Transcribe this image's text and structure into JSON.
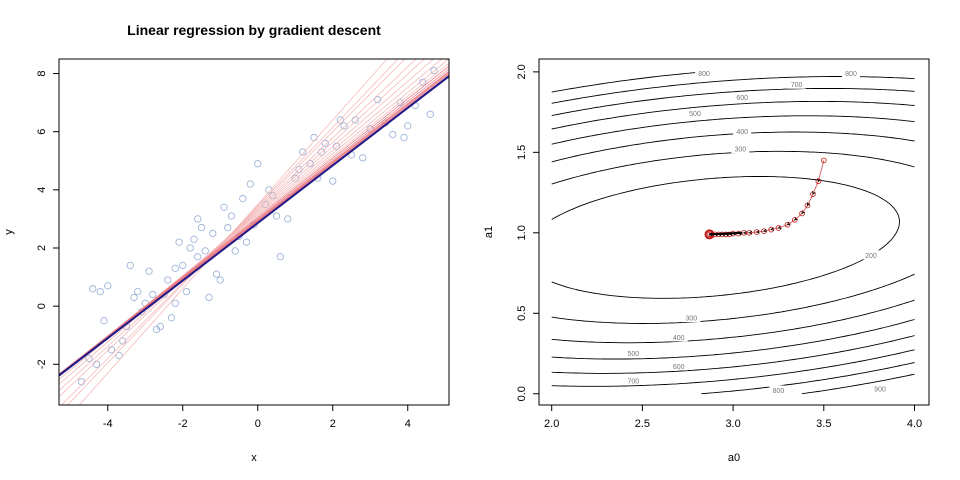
{
  "chart_data": [
    {
      "type": "scatter",
      "title": "Linear regression by gradient descent",
      "xlabel": "x",
      "ylabel": "y",
      "xlim": [
        -5.3,
        5.1
      ],
      "ylim": [
        -3.4,
        8.5
      ],
      "x_ticks": [
        -4,
        -2,
        0,
        2,
        4
      ],
      "y_ticks": [
        -2,
        0,
        2,
        4,
        6,
        8
      ],
      "x_tick_labels": [
        "-4",
        "-2",
        "0",
        "2",
        "4"
      ],
      "y_tick_labels": [
        "-2",
        "0",
        "2",
        "4",
        "6",
        "8"
      ],
      "points": {
        "color": "#9db4d9",
        "x": [
          -4.7,
          -4.5,
          -4.4,
          -4.3,
          -4.2,
          -4.1,
          -4.0,
          -3.9,
          -3.7,
          -3.6,
          -3.5,
          -3.4,
          -3.3,
          -3.1,
          -3.0,
          -2.9,
          -2.8,
          -2.7,
          -2.6,
          -2.5,
          -2.4,
          -2.3,
          -2.2,
          -2.1,
          -2.0,
          -1.9,
          -1.8,
          -1.7,
          -1.6,
          -1.5,
          -1.4,
          -1.3,
          -1.2,
          -1.1,
          -1.0,
          -0.9,
          -0.8,
          -0.7,
          -0.6,
          -0.5,
          -0.4,
          -0.3,
          -0.2,
          -0.1,
          0.0,
          0.2,
          0.3,
          0.4,
          0.6,
          0.8,
          1.0,
          1.2,
          1.4,
          1.5,
          1.6,
          1.7,
          1.8,
          2.0,
          2.1,
          2.3,
          2.5,
          2.6,
          2.8,
          3.0,
          3.2,
          3.4,
          3.6,
          3.8,
          4.0,
          4.2,
          4.4,
          4.6,
          4.7,
          -3.2,
          -1.6,
          0.5,
          2.2,
          -2.2,
          1.1,
          3.9
        ],
        "y": [
          -2.6,
          -1.8,
          0.6,
          -2.0,
          0.5,
          -0.5,
          0.7,
          -1.5,
          -1.7,
          -1.2,
          -0.7,
          1.4,
          0.3,
          -0.2,
          0.1,
          1.2,
          0.4,
          -0.8,
          -0.7,
          0.4,
          0.9,
          -0.4,
          0.1,
          2.2,
          1.4,
          0.5,
          2.0,
          2.3,
          1.7,
          2.7,
          1.9,
          0.3,
          2.5,
          1.1,
          0.9,
          3.4,
          2.7,
          3.1,
          1.9,
          2.4,
          3.7,
          2.2,
          4.2,
          2.8,
          4.9,
          3.5,
          4.0,
          3.8,
          1.7,
          3.0,
          4.4,
          5.3,
          4.9,
          5.8,
          4.4,
          5.3,
          5.6,
          4.3,
          5.5,
          6.2,
          5.2,
          6.4,
          5.1,
          6.1,
          7.1,
          6.3,
          5.9,
          7.0,
          6.2,
          6.9,
          7.7,
          6.6,
          8.1,
          0.5,
          3.0,
          3.1,
          6.4,
          1.3,
          4.7,
          5.8
        ]
      },
      "fitted_lines": {
        "colors": [
          "#f3b3b3",
          "#e8767e",
          "#c2183b",
          "#1f1a8a"
        ],
        "series": [
          {
            "a0": 3.5,
            "a1": 1.45
          },
          {
            "a0": 3.45,
            "a1": 1.35
          },
          {
            "a0": 3.4,
            "a1": 1.3
          },
          {
            "a0": 3.35,
            "a1": 1.22
          },
          {
            "a0": 3.3,
            "a1": 1.17
          },
          {
            "a0": 3.25,
            "a1": 1.12
          },
          {
            "a0": 3.2,
            "a1": 1.08
          },
          {
            "a0": 3.15,
            "a1": 1.05
          },
          {
            "a0": 3.1,
            "a1": 1.03
          },
          {
            "a0": 3.05,
            "a1": 1.02
          },
          {
            "a0": 3.0,
            "a1": 1.01
          },
          {
            "a0": 2.97,
            "a1": 1.0
          },
          {
            "a0": 2.94,
            "a1": 1.0
          },
          {
            "a0": 2.92,
            "a1": 0.995
          },
          {
            "a0": 2.9,
            "a1": 0.99
          },
          {
            "a0": 2.88,
            "a1": 0.99
          },
          {
            "a0": 2.87,
            "a1": 0.99
          },
          {
            "a0": 2.86,
            "a1": 0.99
          }
        ]
      }
    },
    {
      "type": "contour",
      "xlabel": "a0",
      "ylabel": "a1",
      "xlim": [
        1.93,
        4.08
      ],
      "ylim": [
        -0.07,
        2.08
      ],
      "x_ticks": [
        2.0,
        2.5,
        3.0,
        3.5,
        4.0
      ],
      "y_ticks": [
        0.0,
        0.5,
        1.0,
        1.5,
        2.0
      ],
      "x_tick_labels": [
        "2.0",
        "2.5",
        "3.0",
        "3.5",
        "4.0"
      ],
      "y_tick_labels": [
        "0.0",
        "0.5",
        "1.0",
        "1.5",
        "2.0"
      ],
      "contour_levels": [
        200,
        300,
        400,
        500,
        600,
        700,
        800,
        900
      ],
      "contour_labels": [
        {
          "text": "800",
          "a0": 2.84,
          "a1": 1.99
        },
        {
          "text": "800",
          "a0": 3.65,
          "a1": 1.99
        },
        {
          "text": "700",
          "a0": 3.35,
          "a1": 1.92
        },
        {
          "text": "600",
          "a0": 3.05,
          "a1": 1.84
        },
        {
          "text": "500",
          "a0": 2.79,
          "a1": 1.74
        },
        {
          "text": "400",
          "a0": 3.05,
          "a1": 1.63
        },
        {
          "text": "300",
          "a0": 3.04,
          "a1": 1.52
        },
        {
          "text": "200",
          "a0": 3.76,
          "a1": 0.86
        },
        {
          "text": "300",
          "a0": 2.77,
          "a1": 0.47
        },
        {
          "text": "400",
          "a0": 2.7,
          "a1": 0.35
        },
        {
          "text": "500",
          "a0": 2.45,
          "a1": 0.25
        },
        {
          "text": "600",
          "a0": 2.7,
          "a1": 0.17
        },
        {
          "text": "700",
          "a0": 2.45,
          "a1": 0.08
        },
        {
          "text": "800",
          "a0": 3.25,
          "a1": 0.02
        },
        {
          "text": "900",
          "a0": 3.81,
          "a1": 0.03
        }
      ],
      "path": {
        "color": "#c21818",
        "a0": [
          3.5,
          3.47,
          3.44,
          3.41,
          3.38,
          3.34,
          3.3,
          3.25,
          3.21,
          3.17,
          3.13,
          3.09,
          3.06,
          3.03,
          3.0,
          2.98,
          2.96,
          2.94,
          2.92,
          2.9,
          2.88,
          2.87
        ],
        "a1": [
          1.45,
          1.32,
          1.24,
          1.17,
          1.12,
          1.08,
          1.05,
          1.03,
          1.02,
          1.01,
          1.005,
          1.0,
          1.0,
          0.995,
          0.995,
          0.99,
          0.99,
          0.99,
          0.99,
          0.99,
          0.99,
          0.99
        ]
      }
    }
  ]
}
